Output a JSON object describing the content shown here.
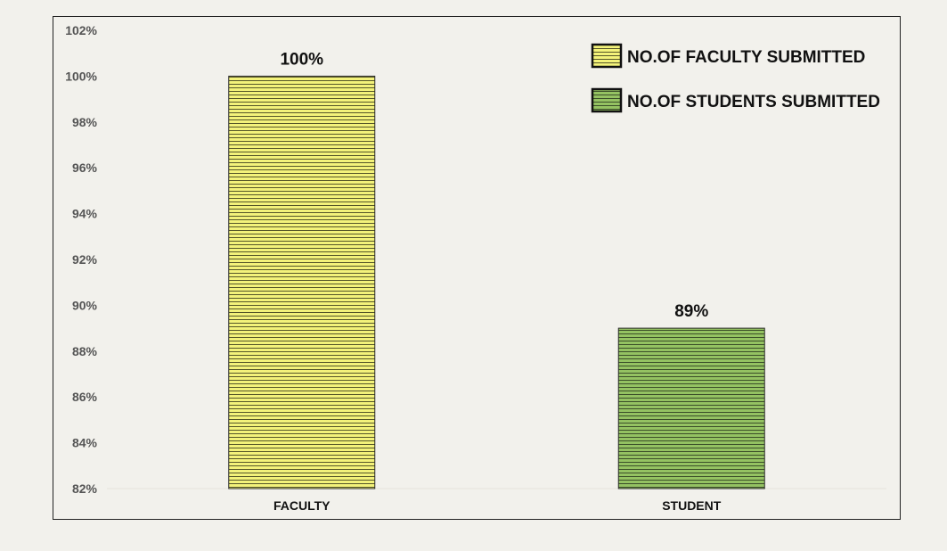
{
  "chart_data": {
    "type": "bar",
    "categories": [
      "FACULTY",
      "STUDENT"
    ],
    "series": [
      {
        "name": "NO.OF FACULTY SUBMITTED",
        "values": [
          100,
          null
        ],
        "color": "#f3f27a",
        "stripe": "#3a3a1a"
      },
      {
        "name": "NO.OF STUDENTS SUBMITTED",
        "values": [
          null,
          89
        ],
        "color": "#94c262",
        "stripe": "#2c3a1e"
      }
    ],
    "values": [
      100,
      89
    ],
    "data_labels": [
      "100%",
      "89%"
    ],
    "title": "",
    "xlabel": "",
    "ylabel": "",
    "ylim": [
      82,
      102
    ],
    "yticks": [
      82,
      84,
      86,
      88,
      90,
      92,
      94,
      96,
      98,
      100,
      102
    ],
    "ytick_labels": [
      "82%",
      "84%",
      "86%",
      "88%",
      "90%",
      "92%",
      "94%",
      "96%",
      "98%",
      "100%",
      "102%"
    ],
    "grid": false,
    "legend": {
      "position": "top-right",
      "entries": [
        "NO.OF FACULTY SUBMITTED",
        "NO.OF STUDENTS SUBMITTED"
      ],
      "colors": [
        "#f3f27a",
        "#94c262"
      ]
    },
    "background": "#f2f1ec"
  }
}
